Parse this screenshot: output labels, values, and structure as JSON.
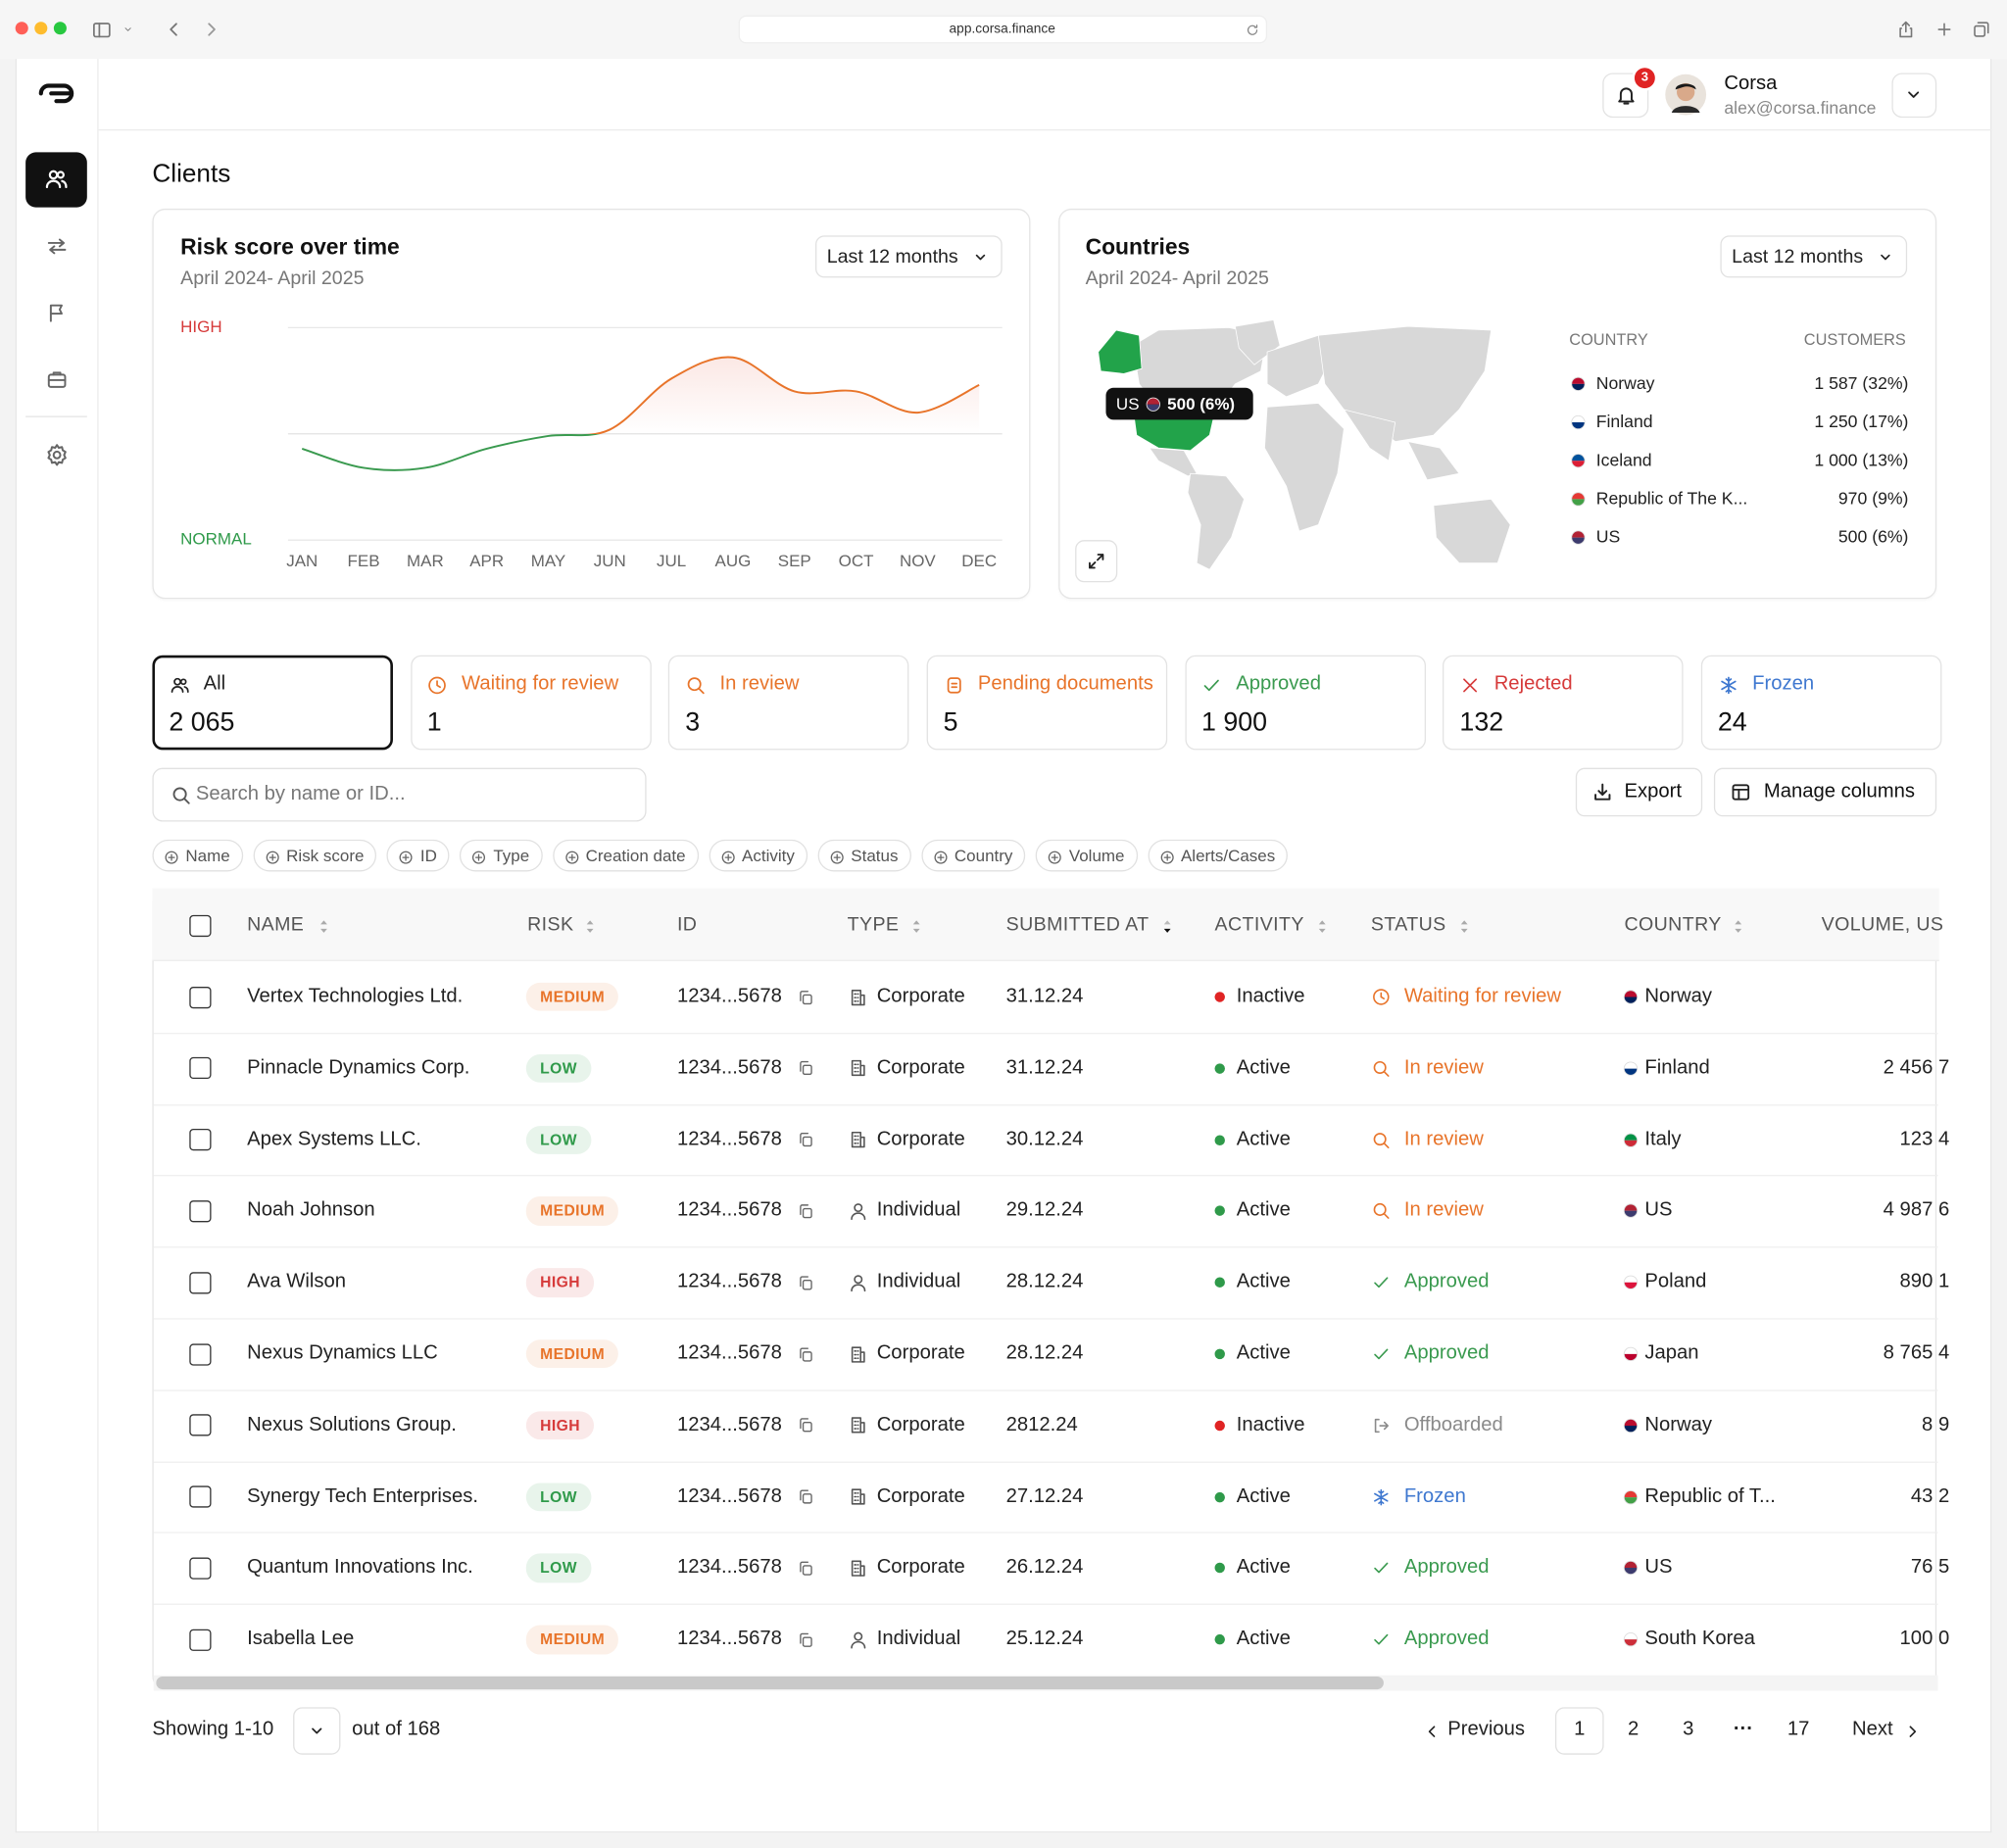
{
  "browser": {
    "url": "app.corsa.finance"
  },
  "header": {
    "notifications": "3",
    "user_name": "Corsa",
    "user_email": "alex@corsa.finance"
  },
  "page_title": "Clients",
  "chart_data": {
    "type": "line",
    "title": "Risk score over time",
    "subtitle": "April 2024- April 2025",
    "period": "Last 12 months",
    "categories": [
      "JAN",
      "FEB",
      "MAR",
      "APR",
      "MAY",
      "JUN",
      "JUL",
      "AUG",
      "SEP",
      "OCT",
      "NOV",
      "DEC"
    ],
    "values": [
      43,
      34,
      34,
      43,
      49,
      52,
      76,
      86,
      70,
      70,
      60,
      73
    ],
    "ylim": [
      0,
      100
    ],
    "yticks": [
      {
        "value": 0,
        "label": "NORMAL"
      },
      {
        "value": 100,
        "label": "HIGH"
      }
    ],
    "tick_colors": [
      "#2f9a4a",
      "#d63a3a"
    ],
    "threshold": 50,
    "colors": {
      "high": "#e8742a",
      "normal": "#3a9a4f"
    }
  },
  "countries": {
    "title": "Countries",
    "subtitle": "April 2024- April 2025",
    "period": "Last 12 months",
    "tooltip": {
      "country": "US",
      "value": "500 (6%)"
    },
    "columns": [
      "COUNTRY",
      "CUSTOMERS"
    ],
    "rows": [
      {
        "country": "Norway",
        "customers": "1 587 (32%)",
        "flag": [
          "#ba0c2f",
          "#00205b"
        ]
      },
      {
        "country": "Finland",
        "customers": "1 250 (17%)",
        "flag": [
          "#ffffff",
          "#003580"
        ]
      },
      {
        "country": "Iceland",
        "customers": "1 000 (13%)",
        "flag": [
          "#02529c",
          "#dc1e35"
        ]
      },
      {
        "country": "Republic of The K...",
        "customers": "970 (9%)",
        "flag": [
          "#e53935",
          "#43a047"
        ]
      },
      {
        "country": "US",
        "customers": "500 (6%)",
        "flag": [
          "#b22234",
          "#3c3b6e"
        ]
      }
    ]
  },
  "tabs": [
    {
      "label": "All",
      "count": "2 065",
      "color": "#222222"
    },
    {
      "label": "Waiting for review",
      "count": "1",
      "color": "#e8742a"
    },
    {
      "label": "In review",
      "count": "3",
      "color": "#e8742a"
    },
    {
      "label": "Pending documents",
      "count": "5",
      "color": "#e8742a"
    },
    {
      "label": "Approved",
      "count": "1 900",
      "color": "#3a9a4f"
    },
    {
      "label": "Rejected",
      "count": "132",
      "color": "#d63a3a"
    },
    {
      "label": "Frozen",
      "count": "24",
      "color": "#3f78d0"
    }
  ],
  "search_placeholder": "Search by name or ID...",
  "buttons": [
    "Export",
    "Manage columns"
  ],
  "filters": [
    "Name",
    "Risk score",
    "ID",
    "Type",
    "Creation date",
    "Activity",
    "Status",
    "Country",
    "Volume",
    "Alerts/Cases"
  ],
  "table": {
    "columns": [
      {
        "label": "NAME",
        "sortable": true
      },
      {
        "label": "RISK",
        "sortable": true
      },
      {
        "label": "ID",
        "sortable": false
      },
      {
        "label": "TYPE",
        "sortable": true
      },
      {
        "label": "SUBMITTED AT",
        "sortable": true,
        "sorted": true
      },
      {
        "label": "ACTIVITY",
        "sortable": true
      },
      {
        "label": "STATUS",
        "sortable": true
      },
      {
        "label": "COUNTRY",
        "sortable": true
      },
      {
        "label": "VOLUME, US",
        "sortable": false
      }
    ],
    "rows": [
      {
        "name": "Vertex Technologies Ltd.",
        "risk": "MEDIUM",
        "risk_color": "#e8742a",
        "id": "1234...5678",
        "type": "Corporate",
        "submitted": "31.12.24",
        "activity": "Inactive",
        "status": "Waiting for review",
        "country": "Norway",
        "flag": [
          "#ba0c2f",
          "#00205b"
        ]
      },
      {
        "name": "Pinnacle Dynamics Corp.",
        "risk": "LOW",
        "risk_color": "#2f9a4a",
        "id": "1234...5678",
        "type": "Corporate",
        "submitted": "31.12.24",
        "activity": "Active",
        "status": "In review",
        "country": "Finland",
        "flag": [
          "#ffffff",
          "#003580"
        ],
        "volume": "2 456 7"
      },
      {
        "name": "Apex Systems LLC.",
        "risk": "LOW",
        "risk_color": "#2f9a4a",
        "id": "1234...5678",
        "type": "Corporate",
        "submitted": "30.12.24",
        "activity": "Active",
        "status": "In review",
        "country": "Italy",
        "flag": [
          "#009246",
          "#ce2b37"
        ],
        "volume": "123 4"
      },
      {
        "name": "Noah Johnson",
        "risk": "MEDIUM",
        "risk_color": "#e8742a",
        "id": "1234...5678",
        "type": "Individual",
        "submitted": "29.12.24",
        "activity": "Active",
        "status": "In review",
        "country": "US",
        "flag": [
          "#b22234",
          "#3c3b6e"
        ],
        "volume": "4 987 6"
      },
      {
        "name": "Ava Wilson",
        "risk": "HIGH",
        "risk_color": "#d63a3a",
        "id": "1234...5678",
        "type": "Individual",
        "submitted": "28.12.24",
        "activity": "Active",
        "status": "Approved",
        "country": "Poland",
        "flag": [
          "#ffffff",
          "#dc143c"
        ],
        "volume": "890 1"
      },
      {
        "name": "Nexus Dynamics LLC",
        "risk": "MEDIUM",
        "risk_color": "#e8742a",
        "id": "1234...5678",
        "type": "Corporate",
        "submitted": "28.12.24",
        "activity": "Active",
        "status": "Approved",
        "country": "Japan",
        "flag": [
          "#ffffff",
          "#bc002d"
        ],
        "volume": "8 765 4"
      },
      {
        "name": "Nexus Solutions Group.",
        "risk": "HIGH",
        "risk_color": "#d63a3a",
        "id": "1234...5678",
        "type": "Corporate",
        "submitted": "2812.24",
        "activity": "Inactive",
        "status": "Offboarded",
        "country": "Norway",
        "flag": [
          "#ba0c2f",
          "#00205b"
        ],
        "volume": "8 9"
      },
      {
        "name": "Synergy Tech Enterprises.",
        "risk": "LOW",
        "risk_color": "#2f9a4a",
        "id": "1234...5678",
        "type": "Corporate",
        "submitted": "27.12.24",
        "activity": "Active",
        "status": "Frozen",
        "country": "Republic of T...",
        "flag": [
          "#e53935",
          "#43a047"
        ],
        "volume": "43 2"
      },
      {
        "name": "Quantum Innovations Inc.",
        "risk": "LOW",
        "risk_color": "#2f9a4a",
        "id": "1234...5678",
        "type": "Corporate",
        "submitted": "26.12.24",
        "activity": "Active",
        "status": "Approved",
        "country": "US",
        "flag": [
          "#b22234",
          "#3c3b6e"
        ],
        "volume": "76 5"
      },
      {
        "name": "Isabella Lee",
        "risk": "MEDIUM",
        "risk_color": "#e8742a",
        "id": "1234...5678",
        "type": "Individual",
        "submitted": "25.12.24",
        "activity": "Active",
        "status": "Approved",
        "country": "South Korea",
        "flag": [
          "#ffffff",
          "#cd2e3a"
        ],
        "volume": "100 0"
      }
    ]
  },
  "pagination": {
    "showing": "Showing 1-10",
    "total": "out of 168",
    "previous": "Previous",
    "pages": [
      "1",
      "2",
      "3",
      "···",
      "17"
    ],
    "next": "Next"
  }
}
